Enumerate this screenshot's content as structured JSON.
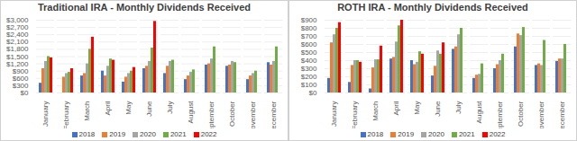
{
  "chart_data": [
    {
      "type": "bar",
      "title": "Traditional IRA - Monthly Dividends Received",
      "categories": [
        "January",
        "February",
        "March",
        "April",
        "May",
        "June",
        "July",
        "August",
        "September",
        "October",
        "November",
        "December"
      ],
      "series": [
        {
          "name": "2018",
          "color": "#4472c4",
          "values": [
            400,
            null,
            700,
            900,
            450,
            1000,
            800,
            550,
            1150,
            1100,
            550,
            1250
          ]
        },
        {
          "name": "2019",
          "color": "#ed7d31",
          "values": [
            1000,
            650,
            800,
            700,
            650,
            1100,
            1100,
            700,
            1200,
            1150,
            700,
            1150
          ]
        },
        {
          "name": "2020",
          "color": "#a5a5a5",
          "values": [
            1300,
            800,
            1200,
            1100,
            800,
            1300,
            1300,
            850,
            1400,
            1300,
            800,
            1300
          ]
        },
        {
          "name": "2021",
          "color": "#70ad47",
          "values": [
            1500,
            850,
            1800,
            1400,
            900,
            1850,
            1350,
            950,
            1900,
            1250,
            900,
            1900
          ]
        },
        {
          "name": "2022",
          "color": "#ff0000",
          "values": [
            1450,
            1000,
            2300,
            1350,
            1050,
            2950,
            null,
            null,
            null,
            null,
            null,
            null
          ]
        }
      ],
      "ylim": [
        0,
        3000
      ],
      "yticks": [
        {
          "value": 0,
          "label": "$0"
        },
        {
          "value": 300,
          "label": "$300"
        },
        {
          "value": 600,
          "label": "$600"
        },
        {
          "value": 900,
          "label": "$900"
        },
        {
          "value": 1200,
          "label": "$1,200"
        },
        {
          "value": 1500,
          "label": "$1,500"
        },
        {
          "value": 1800,
          "label": "$1,800"
        },
        {
          "value": 2100,
          "label": "$2,100"
        },
        {
          "value": 2400,
          "label": "$2,400"
        },
        {
          "value": 2700,
          "label": "$2,700"
        },
        {
          "value": 3000,
          "label": "$3,000"
        }
      ],
      "grid": true,
      "legend": "bottom"
    },
    {
      "type": "bar",
      "title": "ROTH IRA - Monthly Dividends Received",
      "categories": [
        "January",
        "February",
        "March",
        "April",
        "May",
        "June",
        "July",
        "August",
        "September",
        "October",
        "November",
        "December"
      ],
      "series": [
        {
          "name": "2018",
          "color": "#4472c4",
          "values": [
            180,
            130,
            50,
            420,
            400,
            210,
            540,
            180,
            300,
            570,
            340,
            390
          ]
        },
        {
          "name": "2019",
          "color": "#ed7d31",
          "values": [
            620,
            340,
            310,
            440,
            350,
            330,
            570,
            220,
            350,
            730,
            360,
            420
          ]
        },
        {
          "name": "2020",
          "color": "#a5a5a5",
          "values": [
            720,
            400,
            410,
            630,
            380,
            520,
            720,
            230,
            400,
            710,
            340,
            420
          ]
        },
        {
          "name": "2021",
          "color": "#70ad47",
          "values": [
            800,
            400,
            410,
            830,
            510,
            480,
            800,
            360,
            480,
            810,
            650,
            600
          ]
        },
        {
          "name": "2022",
          "color": "#ff0000",
          "values": [
            870,
            380,
            580,
            900,
            480,
            620,
            null,
            null,
            null,
            null,
            null,
            null
          ]
        }
      ],
      "ylim": [
        0,
        900
      ],
      "yticks": [
        {
          "value": 0,
          "label": "$0"
        },
        {
          "value": 100,
          "label": "$100"
        },
        {
          "value": 200,
          "label": "$200"
        },
        {
          "value": 300,
          "label": "$300"
        },
        {
          "value": 400,
          "label": "$400"
        },
        {
          "value": 500,
          "label": "$500"
        },
        {
          "value": 600,
          "label": "$600"
        },
        {
          "value": 700,
          "label": "$700"
        },
        {
          "value": 800,
          "label": "$800"
        },
        {
          "value": 900,
          "label": "$900"
        }
      ],
      "grid": true,
      "legend": "bottom"
    }
  ]
}
